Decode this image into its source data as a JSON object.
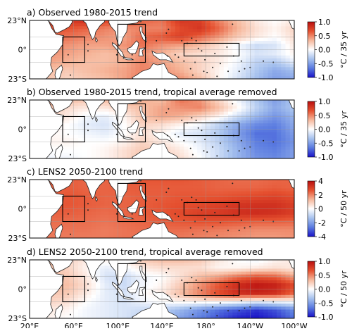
{
  "chart_data": [
    {
      "type": "heatmap",
      "title": "a) Observed 1980-2015 trend",
      "unit": "°C / 35 yr",
      "clim": [
        -1.0,
        1.0
      ],
      "colorbar_ticks": [
        "1.0",
        "0.5",
        "0.0",
        "-0.5",
        "-1.0"
      ],
      "yticks": [
        "23°N",
        "0°",
        "23°S"
      ],
      "xlim": [
        20,
        260
      ],
      "ylim": [
        -23,
        23
      ],
      "boxes": [
        [
          50,
          -10,
          70,
          10
        ],
        [
          100,
          -10,
          125,
          20
        ],
        [
          160,
          -5,
          210,
          5
        ]
      ],
      "field": [
        [
          0.8,
          0.75,
          0.8,
          0.85,
          0.75,
          0.7,
          0.6,
          0.55,
          0.8,
          0.75,
          0.5,
          0.3,
          0.1,
          0.0,
          0.1
        ],
        [
          0.7,
          0.7,
          0.65,
          0.6,
          0.5,
          0.45,
          0.5,
          0.5,
          0.7,
          0.8,
          0.6,
          0.35,
          0.15,
          0.05,
          0.2
        ],
        [
          0.55,
          0.6,
          0.55,
          0.5,
          0.45,
          0.4,
          0.6,
          0.65,
          0.75,
          0.6,
          0.45,
          0.25,
          0.1,
          0.0,
          0.15
        ],
        [
          0.5,
          0.5,
          0.45,
          0.4,
          0.4,
          0.45,
          0.55,
          0.45,
          0.4,
          0.3,
          0.15,
          -0.05,
          -0.2,
          -0.15,
          0.1
        ],
        [
          0.45,
          0.45,
          0.4,
          0.35,
          0.3,
          0.35,
          0.45,
          0.35,
          0.2,
          0.15,
          0.1,
          0.0,
          -0.15,
          -0.1,
          0.05
        ],
        [
          0.4,
          0.4,
          0.35,
          0.3,
          0.3,
          0.35,
          0.5,
          0.4,
          0.3,
          0.2,
          0.1,
          -0.05,
          -0.25,
          -0.3,
          -0.1
        ],
        [
          0.35,
          0.3,
          0.25,
          0.3,
          0.35,
          0.4,
          0.5,
          0.45,
          0.35,
          0.2,
          0.05,
          -0.1,
          -0.3,
          -0.45,
          -0.35
        ],
        [
          0.3,
          0.25,
          0.2,
          0.25,
          0.3,
          0.4,
          0.55,
          0.5,
          0.45,
          0.3,
          0.05,
          -0.15,
          -0.35,
          -0.5,
          -0.45
        ]
      ]
    },
    {
      "type": "heatmap",
      "title": "b) Observed 1980-2015 trend, tropical average removed",
      "unit": "°C / 35 yr",
      "clim": [
        -1.0,
        1.0
      ],
      "colorbar_ticks": [
        "1.0",
        "0.5",
        "0.0",
        "-0.5",
        "-1.0"
      ],
      "yticks": [
        "23°N",
        "0°",
        "23°S"
      ],
      "xlim": [
        20,
        260
      ],
      "ylim": [
        -23,
        23
      ],
      "boxes": [
        [
          50,
          -10,
          70,
          10
        ],
        [
          100,
          -10,
          125,
          20
        ],
        [
          160,
          -5,
          210,
          5
        ]
      ],
      "field": [
        [
          0.5,
          0.45,
          0.3,
          0.25,
          0.3,
          0.4,
          0.35,
          0.3,
          0.55,
          0.45,
          0.2,
          -0.05,
          -0.3,
          -0.5,
          -0.3
        ],
        [
          0.3,
          0.3,
          0.15,
          0.1,
          0.1,
          0.2,
          0.3,
          0.4,
          0.45,
          0.5,
          0.3,
          0.05,
          -0.25,
          -0.45,
          -0.3
        ],
        [
          0.2,
          0.2,
          0.1,
          -0.05,
          -0.1,
          0.05,
          0.3,
          0.4,
          0.35,
          0.2,
          0.05,
          -0.2,
          -0.4,
          -0.55,
          -0.4
        ],
        [
          0.15,
          0.1,
          0.0,
          -0.1,
          -0.15,
          0.0,
          0.2,
          0.15,
          0.05,
          -0.05,
          -0.25,
          -0.45,
          -0.6,
          -0.65,
          -0.45
        ],
        [
          0.1,
          0.05,
          0.0,
          -0.05,
          -0.1,
          0.0,
          0.15,
          0.05,
          -0.1,
          -0.15,
          -0.3,
          -0.5,
          -0.7,
          -0.7,
          -0.5
        ],
        [
          0.05,
          0.05,
          0.05,
          0.0,
          0.0,
          0.05,
          0.2,
          0.1,
          0.0,
          -0.1,
          -0.25,
          -0.45,
          -0.65,
          -0.7,
          -0.55
        ],
        [
          0.05,
          0.0,
          0.0,
          0.0,
          0.05,
          0.15,
          0.25,
          0.2,
          0.1,
          -0.05,
          -0.2,
          -0.4,
          -0.6,
          -0.65,
          -0.5
        ],
        [
          0.0,
          -0.05,
          -0.05,
          0.0,
          0.05,
          0.15,
          0.3,
          0.25,
          0.15,
          0.0,
          -0.2,
          -0.4,
          -0.55,
          -0.6,
          -0.5
        ]
      ]
    },
    {
      "type": "heatmap",
      "title": "c) LENS2 2050-2100 trend",
      "unit": "°C / 50 yr",
      "clim": [
        -4,
        4
      ],
      "colorbar_ticks": [
        "4",
        "2",
        "0",
        "-2",
        "-4"
      ],
      "yticks": [
        "23°N",
        "0°",
        "23°S"
      ],
      "xlim": [
        20,
        260
      ],
      "ylim": [
        -23,
        23
      ],
      "boxes": [
        [
          50,
          -10,
          70,
          10
        ],
        [
          100,
          -10,
          125,
          20
        ],
        [
          160,
          -5,
          210,
          5
        ]
      ],
      "field": [
        [
          2.6,
          2.6,
          2.5,
          2.4,
          2.4,
          2.5,
          2.6,
          2.6,
          2.6,
          2.5,
          2.4,
          2.3,
          2.3,
          2.4,
          2.4
        ],
        [
          2.6,
          2.5,
          2.5,
          2.4,
          2.4,
          2.5,
          2.5,
          2.5,
          2.5,
          2.5,
          2.4,
          2.4,
          2.4,
          2.5,
          2.4
        ],
        [
          2.5,
          2.5,
          2.6,
          2.5,
          2.4,
          2.4,
          2.5,
          2.5,
          2.6,
          2.6,
          2.6,
          2.7,
          2.8,
          2.9,
          2.7
        ],
        [
          2.5,
          2.5,
          2.6,
          2.5,
          2.4,
          2.4,
          2.5,
          2.6,
          2.7,
          2.8,
          3.0,
          3.2,
          3.3,
          3.3,
          3.0
        ],
        [
          2.4,
          2.4,
          2.5,
          2.4,
          2.3,
          2.4,
          2.5,
          2.6,
          2.8,
          3.0,
          3.1,
          3.3,
          3.4,
          3.3,
          3.0
        ],
        [
          2.3,
          2.3,
          2.3,
          2.3,
          2.2,
          2.3,
          2.4,
          2.5,
          2.6,
          2.7,
          2.7,
          2.6,
          2.5,
          2.5,
          2.4
        ],
        [
          2.2,
          2.2,
          2.2,
          2.2,
          2.1,
          2.2,
          2.3,
          2.3,
          2.3,
          2.2,
          2.1,
          2.0,
          1.9,
          1.9,
          1.9
        ],
        [
          2.1,
          2.1,
          2.1,
          2.1,
          2.1,
          2.2,
          2.2,
          2.2,
          2.1,
          2.0,
          1.9,
          1.8,
          1.7,
          1.7,
          1.8
        ]
      ]
    },
    {
      "type": "heatmap",
      "title": "d) LENS2 2050-2100 trend, tropical average removed",
      "unit": "°C / 50 yr",
      "clim": [
        -1.0,
        1.0
      ],
      "colorbar_ticks": [
        "1.0",
        "0.5",
        "0.0",
        "-0.5",
        "-1.0"
      ],
      "yticks": [
        "23°N",
        "0°",
        "23°S"
      ],
      "xlim": [
        20,
        260
      ],
      "ylim": [
        -23,
        23
      ],
      "boxes": [
        [
          50,
          -10,
          70,
          10
        ],
        [
          100,
          -10,
          125,
          20
        ],
        [
          160,
          -5,
          210,
          5
        ]
      ],
      "field": [
        [
          0.3,
          0.35,
          0.2,
          0.1,
          0.05,
          0.1,
          0.25,
          0.3,
          0.3,
          0.25,
          0.1,
          0.0,
          -0.05,
          0.05,
          0.1
        ],
        [
          0.35,
          0.3,
          0.2,
          0.05,
          -0.1,
          -0.05,
          0.1,
          0.15,
          0.15,
          0.15,
          0.05,
          0.05,
          0.1,
          0.15,
          0.1
        ],
        [
          0.3,
          0.3,
          0.25,
          0.1,
          -0.15,
          -0.2,
          -0.05,
          0.0,
          0.15,
          0.3,
          0.4,
          0.55,
          0.65,
          0.6,
          0.4
        ],
        [
          0.25,
          0.25,
          0.3,
          0.15,
          -0.1,
          -0.2,
          -0.05,
          0.05,
          0.25,
          0.45,
          0.65,
          0.85,
          0.95,
          0.9,
          0.7
        ],
        [
          0.2,
          0.25,
          0.25,
          0.1,
          -0.1,
          -0.15,
          0.0,
          0.1,
          0.3,
          0.5,
          0.7,
          0.85,
          0.9,
          0.85,
          0.6
        ],
        [
          0.15,
          0.2,
          0.15,
          0.0,
          -0.1,
          -0.15,
          -0.05,
          0.0,
          0.05,
          0.05,
          0.05,
          0.0,
          -0.1,
          -0.05,
          0.0
        ],
        [
          0.1,
          0.1,
          0.05,
          -0.05,
          -0.1,
          -0.15,
          -0.2,
          -0.25,
          -0.4,
          -0.55,
          -0.7,
          -0.8,
          -0.9,
          -0.8,
          -0.6
        ],
        [
          0.05,
          0.05,
          0.0,
          -0.05,
          -0.1,
          -0.15,
          -0.25,
          -0.35,
          -0.5,
          -0.65,
          -0.8,
          -0.95,
          -1.0,
          -0.9,
          -0.7
        ]
      ]
    }
  ],
  "xaxis": {
    "ticks": [
      "20°E",
      "60°E",
      "100°E",
      "140°E",
      "180°",
      "140°W",
      "100°W"
    ]
  },
  "colormap": {
    "stops": [
      "#1a13c8",
      "#5a7be0",
      "#a7c2ee",
      "#ffffff",
      "#f6b79b",
      "#e5502f",
      "#b80f0f"
    ]
  },
  "land_color": "#ffffff"
}
